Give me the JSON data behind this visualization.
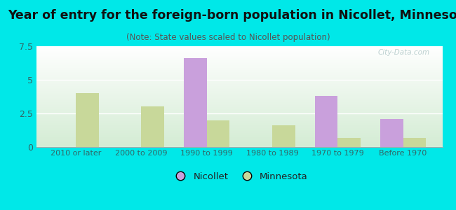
{
  "title": "Year of entry for the foreign-born population in Nicollet, Minnesota",
  "subtitle": "(Note: State values scaled to Nicollet population)",
  "categories": [
    "2010 or later",
    "2000 to 2009",
    "1990 to 1999",
    "1980 to 1989",
    "1970 to 1979",
    "Before 1970"
  ],
  "nicollet_values": [
    0,
    0,
    6.6,
    0,
    3.8,
    2.1
  ],
  "minnesota_values": [
    4.0,
    3.0,
    2.0,
    1.6,
    0.7,
    0.7
  ],
  "nicollet_color": "#c9a0dc",
  "minnesota_color": "#c8d89a",
  "background_outer": "#00e8e8",
  "ylim": [
    0,
    7.5
  ],
  "yticks": [
    0,
    2.5,
    5,
    7.5
  ],
  "bar_width": 0.35,
  "title_fontsize": 12.5,
  "subtitle_fontsize": 8.5,
  "legend_nicollet": "Nicollet",
  "legend_minnesota": "Minnesota",
  "watermark": "City-Data.com"
}
